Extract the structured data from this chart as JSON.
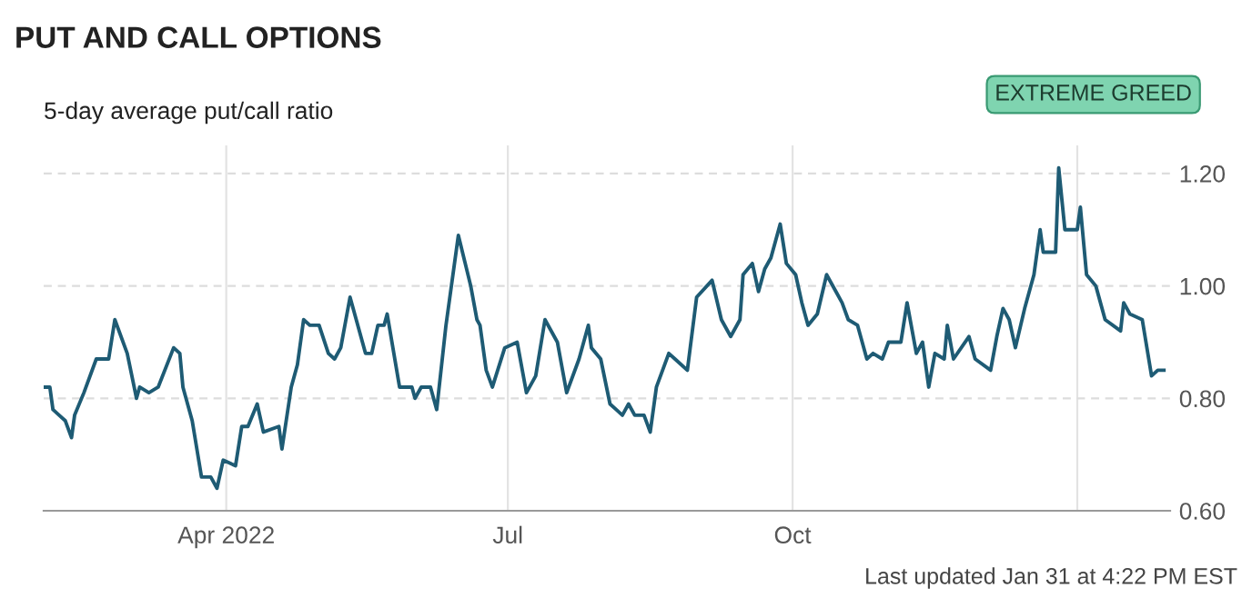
{
  "chart_data": {
    "type": "line",
    "title": "PUT AND CALL OPTIONS",
    "subtitle": "5-day average put/call ratio",
    "annotations": [
      "EXTREME GREED",
      "Last updated Jan 31 at 4:22 PM EST"
    ],
    "xlim": [
      "2022-02-01",
      "2023-01-31"
    ],
    "xticks": [
      {
        "value": "2022-04-01",
        "label": "Apr 2022"
      },
      {
        "value": "2022-07-01",
        "label": "Jul"
      },
      {
        "value": "2022-10-01",
        "label": "Oct"
      },
      {
        "value": "2023-01-01",
        "label": null
      }
    ],
    "ylim": [
      0.6,
      1.25
    ],
    "yticks": [
      {
        "value": 0.6,
        "label": "0.60"
      },
      {
        "value": 0.8,
        "label": "0.80"
      },
      {
        "value": 1.0,
        "label": "1.00"
      },
      {
        "value": 1.2,
        "label": "1.20"
      }
    ],
    "grid": true,
    "marker": "none",
    "line_style": "solid",
    "series": [
      {
        "color": "#1e5b74",
        "x": [
          "2022-02-01",
          "2022-02-03",
          "2022-02-04",
          "2022-02-06",
          "2022-02-08",
          "2022-02-10",
          "2022-02-11",
          "2022-02-14",
          "2022-02-18",
          "2022-02-22",
          "2022-02-24",
          "2022-02-28",
          "2022-03-03",
          "2022-03-04",
          "2022-03-07",
          "2022-03-10",
          "2022-03-15",
          "2022-03-17",
          "2022-03-18",
          "2022-03-21",
          "2022-03-24",
          "2022-03-27",
          "2022-03-29",
          "2022-03-31",
          "2022-04-04",
          "2022-04-06",
          "2022-04-08",
          "2022-04-11",
          "2022-04-13",
          "2022-04-18",
          "2022-04-19",
          "2022-04-22",
          "2022-04-24",
          "2022-04-26",
          "2022-04-28",
          "2022-05-01",
          "2022-05-04",
          "2022-05-06",
          "2022-05-08",
          "2022-05-11",
          "2022-05-16",
          "2022-05-18",
          "2022-05-20",
          "2022-05-22",
          "2022-05-23",
          "2022-05-27",
          "2022-05-31",
          "2022-06-01",
          "2022-06-03",
          "2022-06-06",
          "2022-06-08",
          "2022-06-11",
          "2022-06-15",
          "2022-06-19",
          "2022-06-21",
          "2022-06-22",
          "2022-06-24",
          "2022-06-26",
          "2022-06-30",
          "2022-07-04",
          "2022-07-07",
          "2022-07-10",
          "2022-07-13",
          "2022-07-17",
          "2022-07-20",
          "2022-07-24",
          "2022-07-27",
          "2022-07-28",
          "2022-07-31",
          "2022-08-03",
          "2022-08-05",
          "2022-08-07",
          "2022-08-09",
          "2022-08-11",
          "2022-08-14",
          "2022-08-16",
          "2022-08-18",
          "2022-08-22",
          "2022-08-24",
          "2022-08-28",
          "2022-08-31",
          "2022-09-05",
          "2022-09-08",
          "2022-09-11",
          "2022-09-14",
          "2022-09-15",
          "2022-09-18",
          "2022-09-20",
          "2022-09-22",
          "2022-09-24",
          "2022-09-27",
          "2022-09-29",
          "2022-10-02",
          "2022-10-04",
          "2022-10-06",
          "2022-10-09",
          "2022-10-12",
          "2022-10-15",
          "2022-10-17",
          "2022-10-19",
          "2022-10-22",
          "2022-10-25",
          "2022-10-27",
          "2022-10-30",
          "2022-11-01",
          "2022-11-05",
          "2022-11-07",
          "2022-11-10",
          "2022-11-12",
          "2022-11-14",
          "2022-11-16",
          "2022-11-19",
          "2022-11-20",
          "2022-11-22",
          "2022-11-27",
          "2022-11-29",
          "2022-12-04",
          "2022-12-06",
          "2022-12-08",
          "2022-12-10",
          "2022-12-12",
          "2022-12-15",
          "2022-12-18",
          "2022-12-20",
          "2022-12-21",
          "2022-12-25",
          "2022-12-26",
          "2022-12-28",
          "2023-01-01",
          "2023-01-02",
          "2023-01-04",
          "2023-01-07",
          "2023-01-10",
          "2023-01-15",
          "2023-01-16",
          "2023-01-18",
          "2023-01-22",
          "2023-01-25",
          "2023-01-27",
          "2023-01-29"
        ],
        "values": [
          0.82,
          0.82,
          0.78,
          0.77,
          0.76,
          0.73,
          0.77,
          0.81,
          0.87,
          0.87,
          0.94,
          0.88,
          0.8,
          0.82,
          0.81,
          0.82,
          0.89,
          0.88,
          0.82,
          0.76,
          0.66,
          0.66,
          0.64,
          0.69,
          0.68,
          0.75,
          0.75,
          0.79,
          0.74,
          0.75,
          0.71,
          0.82,
          0.86,
          0.94,
          0.93,
          0.93,
          0.88,
          0.87,
          0.89,
          0.98,
          0.88,
          0.88,
          0.93,
          0.93,
          0.95,
          0.82,
          0.82,
          0.8,
          0.82,
          0.82,
          0.78,
          0.93,
          1.09,
          1.0,
          0.94,
          0.93,
          0.85,
          0.82,
          0.89,
          0.9,
          0.81,
          0.84,
          0.94,
          0.9,
          0.81,
          0.87,
          0.93,
          0.89,
          0.87,
          0.79,
          0.78,
          0.77,
          0.79,
          0.77,
          0.77,
          0.74,
          0.82,
          0.88,
          0.87,
          0.85,
          0.98,
          1.01,
          0.94,
          0.91,
          0.94,
          1.02,
          1.04,
          0.99,
          1.03,
          1.05,
          1.11,
          1.04,
          1.02,
          0.97,
          0.93,
          0.95,
          1.02,
          0.99,
          0.97,
          0.94,
          0.93,
          0.87,
          0.88,
          0.87,
          0.9,
          0.9,
          0.97,
          0.88,
          0.9,
          0.82,
          0.88,
          0.87,
          0.93,
          0.87,
          0.91,
          0.87,
          0.85,
          0.91,
          0.96,
          0.94,
          0.89,
          0.96,
          1.02,
          1.1,
          1.06,
          1.06,
          1.21,
          1.1,
          1.1,
          1.14,
          1.02,
          1.0,
          0.94,
          0.92,
          0.97,
          0.95,
          0.94,
          0.84,
          0.85,
          0.85
        ]
      }
    ]
  }
}
